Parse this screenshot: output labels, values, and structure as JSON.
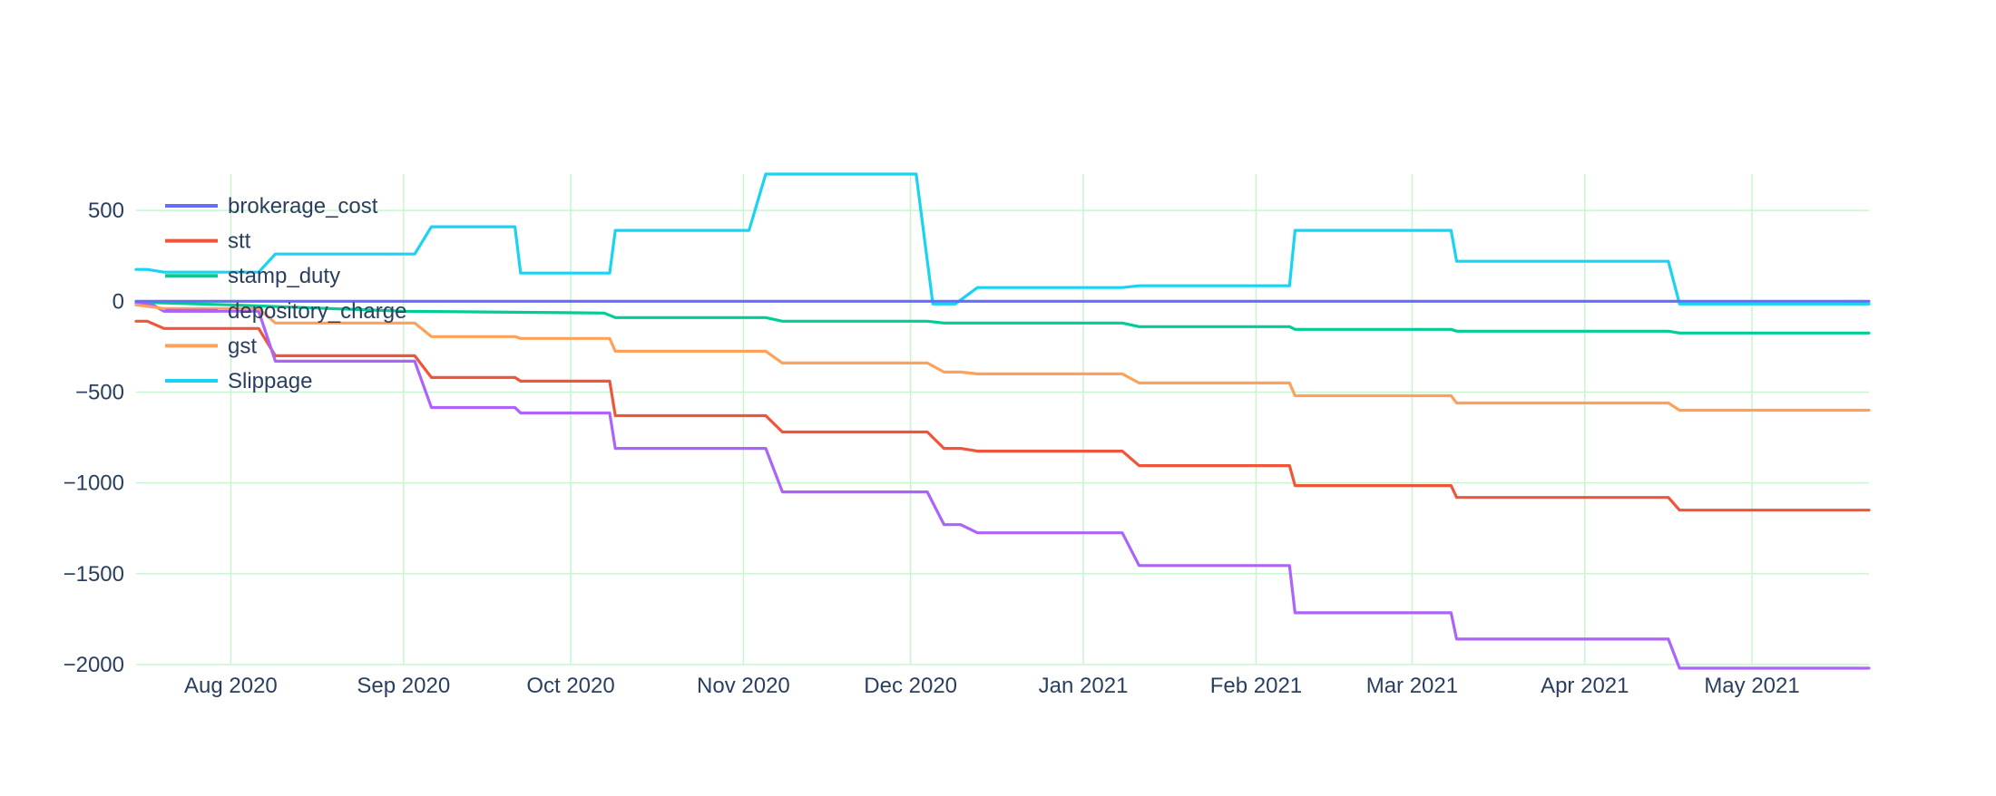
{
  "chart_data": {
    "type": "line",
    "title": "",
    "xlabel": "",
    "ylabel": "",
    "xlim": [
      "2020-07-15",
      "2021-05-22"
    ],
    "ylim": [
      -2000,
      700
    ],
    "grid": true,
    "legend": "top-left",
    "colors": {
      "grid": "#c8f5d0",
      "tick_text": "#2a3f5f",
      "background": "#ffffff"
    },
    "x_ticks": [
      {
        "date": "2020-08-01",
        "label": "Aug 2020"
      },
      {
        "date": "2020-09-01",
        "label": "Sep 2020"
      },
      {
        "date": "2020-10-01",
        "label": "Oct 2020"
      },
      {
        "date": "2020-11-01",
        "label": "Nov 2020"
      },
      {
        "date": "2020-12-01",
        "label": "Dec 2020"
      },
      {
        "date": "2021-01-01",
        "label": "Jan 2021"
      },
      {
        "date": "2021-02-01",
        "label": "Feb 2021"
      },
      {
        "date": "2021-03-01",
        "label": "Mar 2021"
      },
      {
        "date": "2021-04-01",
        "label": "Apr 2021"
      },
      {
        "date": "2021-05-01",
        "label": "May 2021"
      }
    ],
    "y_ticks": [
      {
        "value": 500,
        "label": "500"
      },
      {
        "value": 0,
        "label": "0"
      },
      {
        "value": -500,
        "label": "−500"
      },
      {
        "value": -1000,
        "label": "−1000"
      },
      {
        "value": -1500,
        "label": "−1500"
      },
      {
        "value": -2000,
        "label": "−2000"
      }
    ],
    "series": [
      {
        "name": "brokerage_cost",
        "color": "#636efa",
        "points": [
          [
            "2020-07-15",
            0
          ],
          [
            "2021-05-22",
            0
          ]
        ]
      },
      {
        "name": "stt",
        "color": "#ef553b",
        "points": [
          [
            "2020-07-15",
            -110
          ],
          [
            "2020-07-17",
            -110
          ],
          [
            "2020-07-20",
            -150
          ],
          [
            "2020-07-30",
            -150
          ],
          [
            "2020-08-06",
            -150
          ],
          [
            "2020-08-09",
            -300
          ],
          [
            "2020-09-03",
            -300
          ],
          [
            "2020-09-06",
            -420
          ],
          [
            "2020-09-21",
            -420
          ],
          [
            "2020-09-22",
            -440
          ],
          [
            "2020-10-08",
            -440
          ],
          [
            "2020-10-09",
            -630
          ],
          [
            "2020-11-05",
            -630
          ],
          [
            "2020-11-08",
            -720
          ],
          [
            "2020-12-04",
            -720
          ],
          [
            "2020-12-07",
            -810
          ],
          [
            "2020-12-10",
            -810
          ],
          [
            "2020-12-13",
            -825
          ],
          [
            "2021-01-08",
            -825
          ],
          [
            "2021-01-11",
            -905
          ],
          [
            "2021-02-07",
            -905
          ],
          [
            "2021-02-08",
            -1015
          ],
          [
            "2021-03-08",
            -1015
          ],
          [
            "2021-03-09",
            -1080
          ],
          [
            "2021-04-16",
            -1080
          ],
          [
            "2021-04-18",
            -1150
          ],
          [
            "2021-05-22",
            -1150
          ]
        ]
      },
      {
        "name": "stamp_duty",
        "color": "#00cc96",
        "points": [
          [
            "2020-07-15",
            -5
          ],
          [
            "2020-08-01",
            -20
          ],
          [
            "2020-09-01",
            -55
          ],
          [
            "2020-10-07",
            -65
          ],
          [
            "2020-10-09",
            -90
          ],
          [
            "2020-11-05",
            -90
          ],
          [
            "2020-11-08",
            -110
          ],
          [
            "2020-12-04",
            -110
          ],
          [
            "2020-12-07",
            -120
          ],
          [
            "2021-01-08",
            -120
          ],
          [
            "2021-01-11",
            -140
          ],
          [
            "2021-02-07",
            -140
          ],
          [
            "2021-02-08",
            -155
          ],
          [
            "2021-03-08",
            -155
          ],
          [
            "2021-03-09",
            -165
          ],
          [
            "2021-04-16",
            -165
          ],
          [
            "2021-04-18",
            -175
          ],
          [
            "2021-05-22",
            -175
          ]
        ]
      },
      {
        "name": "depository_charge",
        "color": "#ab63fa",
        "points": [
          [
            "2020-07-15",
            -10
          ],
          [
            "2020-07-18",
            -20
          ],
          [
            "2020-07-20",
            -55
          ],
          [
            "2020-08-06",
            -55
          ],
          [
            "2020-08-09",
            -330
          ],
          [
            "2020-09-03",
            -330
          ],
          [
            "2020-09-06",
            -585
          ],
          [
            "2020-09-21",
            -585
          ],
          [
            "2020-09-22",
            -615
          ],
          [
            "2020-10-08",
            -615
          ],
          [
            "2020-10-09",
            -810
          ],
          [
            "2020-11-05",
            -810
          ],
          [
            "2020-11-08",
            -1050
          ],
          [
            "2020-12-04",
            -1050
          ],
          [
            "2020-12-07",
            -1230
          ],
          [
            "2020-12-10",
            -1230
          ],
          [
            "2020-12-13",
            -1275
          ],
          [
            "2021-01-08",
            -1275
          ],
          [
            "2021-01-11",
            -1455
          ],
          [
            "2021-02-07",
            -1455
          ],
          [
            "2021-02-08",
            -1715
          ],
          [
            "2021-03-08",
            -1715
          ],
          [
            "2021-03-09",
            -1860
          ],
          [
            "2021-04-16",
            -1860
          ],
          [
            "2021-04-18",
            -2020
          ],
          [
            "2021-05-22",
            -2020
          ]
        ]
      },
      {
        "name": "gst",
        "color": "#ffa15a",
        "points": [
          [
            "2020-07-15",
            -20
          ],
          [
            "2020-07-20",
            -40
          ],
          [
            "2020-08-06",
            -40
          ],
          [
            "2020-08-09",
            -120
          ],
          [
            "2020-09-03",
            -120
          ],
          [
            "2020-09-06",
            -195
          ],
          [
            "2020-09-21",
            -195
          ],
          [
            "2020-09-22",
            -205
          ],
          [
            "2020-10-08",
            -205
          ],
          [
            "2020-10-09",
            -275
          ],
          [
            "2020-11-05",
            -275
          ],
          [
            "2020-11-08",
            -340
          ],
          [
            "2020-12-04",
            -340
          ],
          [
            "2020-12-07",
            -390
          ],
          [
            "2020-12-10",
            -390
          ],
          [
            "2020-12-13",
            -400
          ],
          [
            "2021-01-08",
            -400
          ],
          [
            "2021-01-11",
            -450
          ],
          [
            "2021-02-07",
            -450
          ],
          [
            "2021-02-08",
            -520
          ],
          [
            "2021-03-08",
            -520
          ],
          [
            "2021-03-09",
            -560
          ],
          [
            "2021-04-16",
            -560
          ],
          [
            "2021-04-18",
            -600
          ],
          [
            "2021-05-22",
            -600
          ]
        ]
      },
      {
        "name": "Slippage",
        "color": "#19d3f3",
        "points": [
          [
            "2020-07-15",
            175
          ],
          [
            "2020-07-17",
            175
          ],
          [
            "2020-07-20",
            160
          ],
          [
            "2020-08-06",
            160
          ],
          [
            "2020-08-09",
            260
          ],
          [
            "2020-09-03",
            260
          ],
          [
            "2020-09-06",
            410
          ],
          [
            "2020-09-21",
            410
          ],
          [
            "2020-09-22",
            155
          ],
          [
            "2020-10-08",
            155
          ],
          [
            "2020-10-09",
            390
          ],
          [
            "2020-11-02",
            390
          ],
          [
            "2020-11-05",
            700
          ],
          [
            "2020-12-02",
            700
          ],
          [
            "2020-12-05",
            -15
          ],
          [
            "2020-12-09",
            -15
          ],
          [
            "2020-12-13",
            75
          ],
          [
            "2021-01-08",
            75
          ],
          [
            "2021-01-11",
            85
          ],
          [
            "2021-02-07",
            85
          ],
          [
            "2021-02-08",
            390
          ],
          [
            "2021-03-08",
            390
          ],
          [
            "2021-03-09",
            220
          ],
          [
            "2021-04-16",
            220
          ],
          [
            "2021-04-18",
            -15
          ],
          [
            "2021-05-22",
            -15
          ]
        ]
      }
    ]
  }
}
